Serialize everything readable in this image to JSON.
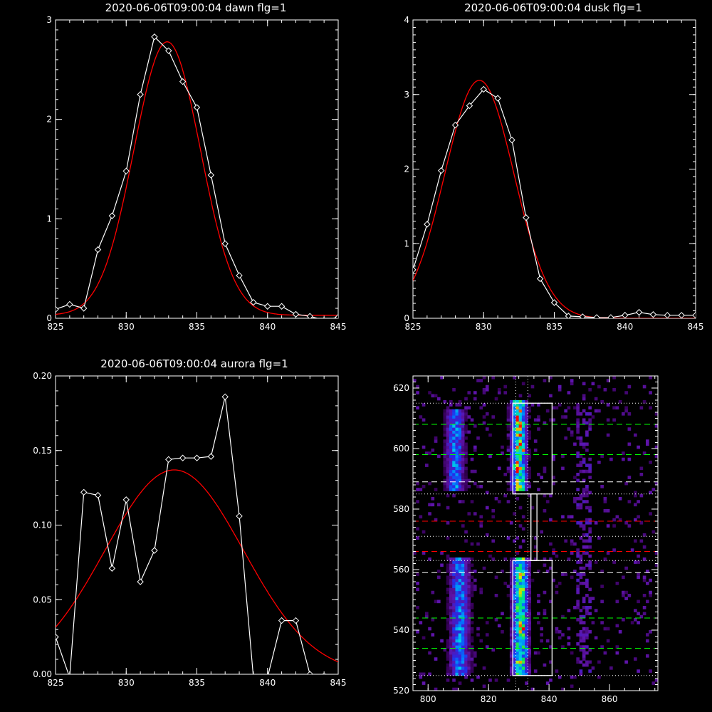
{
  "chart_data": [
    {
      "type": "line",
      "title": "2020-06-06T09:00:04 dawn flg=1",
      "xlim": [
        825,
        845
      ],
      "ylim": [
        0,
        3
      ],
      "xticks": [
        825,
        830,
        835,
        840,
        845
      ],
      "yticks": [
        0,
        1,
        2,
        3
      ],
      "xminor": 1,
      "yminor": 0.1,
      "series": [
        {
          "color": "#ffffff",
          "marker": "diamond",
          "x": [
            825,
            826,
            827,
            828,
            829,
            830,
            831,
            832,
            833,
            834,
            835,
            836,
            837,
            838,
            839,
            840,
            841,
            842,
            843,
            844,
            845
          ],
          "y": [
            0.09,
            0.14,
            0.1,
            0.69,
            1.03,
            1.48,
            2.25,
            2.83,
            2.69,
            2.38,
            2.12,
            1.44,
            0.75,
            0.43,
            0.16,
            0.12,
            0.12,
            0.04,
            0.02,
            -0.02,
            0.01
          ]
        },
        {
          "color": "#ff0000",
          "fit": "gaussian",
          "amp": 2.75,
          "center": 832.9,
          "sigma": 2.35,
          "offset": 0.03
        }
      ]
    },
    {
      "type": "line",
      "title": "2020-06-06T09:00:04 dusk flg=1",
      "xlim": [
        825,
        845
      ],
      "ylim": [
        0,
        4
      ],
      "xticks": [
        825,
        830,
        835,
        840,
        845
      ],
      "yticks": [
        0,
        1,
        2,
        3,
        4
      ],
      "xminor": 1,
      "yminor": 0.1,
      "series": [
        {
          "color": "#ffffff",
          "marker": "diamond",
          "x": [
            825,
            826,
            827,
            828,
            829,
            830,
            831,
            832,
            833,
            834,
            835,
            836,
            837,
            838,
            839,
            840,
            841,
            842,
            843,
            844,
            845
          ],
          "y": [
            0.65,
            1.26,
            1.98,
            2.59,
            2.85,
            3.07,
            2.95,
            2.39,
            1.35,
            0.53,
            0.21,
            0.03,
            0.02,
            0.01,
            0.01,
            0.04,
            0.08,
            0.05,
            0.04,
            0.04,
            0.04
          ]
        },
        {
          "color": "#ff0000",
          "fit": "gaussian",
          "amp": 3.19,
          "center": 829.7,
          "sigma": 2.45,
          "offset": 0.0
        }
      ]
    },
    {
      "type": "line",
      "title": "2020-06-06T09:00:04 aurora flg=1",
      "xlim": [
        825,
        845
      ],
      "ylim": [
        0,
        0.2
      ],
      "xticks": [
        825,
        830,
        835,
        840,
        845
      ],
      "yticks": [
        0.0,
        0.05,
        0.1,
        0.15,
        0.2
      ],
      "ytick_labels": [
        "0.00",
        "0.05",
        "0.10",
        "0.15",
        "0.20"
      ],
      "xminor": 1,
      "yminor": 0.01,
      "series": [
        {
          "color": "#ffffff",
          "marker": "diamond",
          "x": [
            825,
            826,
            827,
            828,
            829,
            830,
            831,
            832,
            833,
            834,
            835,
            836,
            837,
            838,
            839,
            840,
            841,
            842,
            843,
            844,
            845
          ],
          "y": [
            0.025,
            -0.002,
            0.122,
            0.12,
            0.071,
            0.117,
            0.062,
            0.083,
            0.144,
            0.145,
            0.145,
            0.146,
            0.186,
            0.106,
            -0.002,
            -0.002,
            0.036,
            0.036,
            0.0,
            -0.001,
            -0.005
          ]
        },
        {
          "color": "#ff0000",
          "fit": "gaussian",
          "amp": 0.137,
          "center": 833.4,
          "sigma": 4.9,
          "offset": 0.0
        }
      ]
    },
    {
      "type": "heatmap",
      "title": "",
      "xlim": [
        795,
        876
      ],
      "ylim": [
        520,
        624
      ],
      "xticks": [
        800,
        820,
        840,
        860
      ],
      "yticks": [
        520,
        540,
        560,
        580,
        600,
        620
      ],
      "xminor": 5,
      "yminor": 2,
      "cell": 1,
      "bands": [
        {
          "xc": 810.5,
          "width": 3.2,
          "y0": 525,
          "y1": 563,
          "peak": 0.55
        },
        {
          "xc": 809.0,
          "width": 3.0,
          "y0": 586,
          "y1": 612,
          "peak": 0.55
        },
        {
          "xc": 830.5,
          "width": 2.6,
          "y0": 525,
          "y1": 563,
          "peak": 0.85
        },
        {
          "xc": 830.0,
          "width": 2.4,
          "y0": 586,
          "y1": 615,
          "peak": 0.95
        }
      ],
      "hotspots": [
        {
          "x": 831,
          "y": 540,
          "v": 1.0
        },
        {
          "x": 830,
          "y": 541,
          "v": 0.95
        },
        {
          "x": 830,
          "y": 604,
          "v": 1.0
        },
        {
          "x": 831,
          "y": 599,
          "v": 0.95
        },
        {
          "x": 829,
          "y": 589,
          "v": 0.9
        },
        {
          "x": 830,
          "y": 606,
          "v": 0.9
        }
      ],
      "boxes": [
        {
          "x0": 828,
          "x1": 841,
          "y0": 525,
          "y1": 563,
          "color": "#ffffff",
          "style": "solid"
        },
        {
          "x0": 828,
          "x1": 841,
          "y0": 585,
          "y1": 615,
          "color": "#ffffff",
          "style": "solid"
        }
      ],
      "connector": {
        "x0": 834,
        "x1": 836,
        "y0": 563,
        "y1": 585
      },
      "hlines": [
        {
          "y": 615,
          "color": "#ffffff",
          "style": "dotted"
        },
        {
          "y": 608,
          "color": "#00ff00",
          "style": "dashed"
        },
        {
          "y": 598,
          "color": "#00ff00",
          "style": "dashed"
        },
        {
          "y": 589,
          "color": "#ffffff",
          "style": "dashed"
        },
        {
          "y": 585,
          "color": "#ffffff",
          "style": "dotted"
        },
        {
          "y": 576,
          "color": "#ff0000",
          "style": "dashed"
        },
        {
          "y": 571,
          "color": "#ffffff",
          "style": "dotted"
        },
        {
          "y": 566,
          "color": "#ff0000",
          "style": "dashed"
        },
        {
          "y": 563,
          "color": "#ffffff",
          "style": "dotted"
        },
        {
          "y": 559,
          "color": "#ffffff",
          "style": "dashed"
        },
        {
          "y": 544,
          "color": "#00ff00",
          "style": "dashed"
        },
        {
          "y": 534,
          "color": "#00ff00",
          "style": "dashed"
        },
        {
          "y": 525,
          "color": "#ffffff",
          "style": "dotted"
        }
      ],
      "vlines": [
        {
          "x": 829,
          "color": "#ffffff",
          "style": "dotted"
        },
        {
          "x": 833,
          "color": "#ffffff",
          "style": "dotted"
        }
      ]
    }
  ]
}
